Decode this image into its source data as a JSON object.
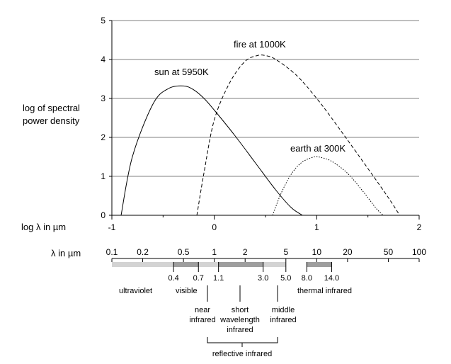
{
  "chart_data": {
    "type": "line",
    "ylabel_lines": [
      "log of spectral",
      "power density"
    ],
    "xlabel": "log  λ in µm",
    "xlim": [
      -1,
      2
    ],
    "ylim": [
      0,
      5
    ],
    "x_ticks": [
      "-1",
      "0",
      "1",
      "2"
    ],
    "y_ticks": [
      "0",
      "1",
      "2",
      "3",
      "4",
      "5"
    ],
    "grid": "horizontal",
    "series": [
      {
        "name": "sun at 5950K",
        "line_style": "solid",
        "x": [
          -0.91,
          -0.8,
          -0.6,
          -0.45,
          -0.3,
          -0.2,
          -0.1,
          0.0,
          0.2,
          0.4,
          0.6,
          0.75,
          0.86
        ],
        "y": [
          0.0,
          1.5,
          2.85,
          3.25,
          3.32,
          3.22,
          3.0,
          2.7,
          2.05,
          1.35,
          0.65,
          0.2,
          0.0
        ]
      },
      {
        "name": "fire at 1000K",
        "line_style": "dashed",
        "x": [
          -0.17,
          -0.1,
          0.0,
          0.15,
          0.3,
          0.42,
          0.5,
          0.6,
          0.8,
          1.0,
          1.2,
          1.5,
          1.7,
          1.81
        ],
        "y": [
          0.0,
          1.1,
          2.45,
          3.4,
          3.95,
          4.1,
          4.1,
          4.0,
          3.6,
          3.0,
          2.3,
          1.2,
          0.45,
          0.0
        ]
      },
      {
        "name": "earth at 300K",
        "line_style": "dotted",
        "x": [
          0.57,
          0.65,
          0.75,
          0.85,
          0.95,
          1.0,
          1.05,
          1.15,
          1.3,
          1.45,
          1.58,
          1.65
        ],
        "y": [
          0.0,
          0.55,
          1.05,
          1.35,
          1.48,
          1.5,
          1.48,
          1.38,
          1.08,
          0.62,
          0.18,
          0.0
        ]
      }
    ],
    "annotations": [
      "sun at 5950K",
      "fire at 1000K",
      "earth at 300K"
    ]
  },
  "wavelength_scale": {
    "label": "λ in µm",
    "ticks": [
      {
        "value": 0.1,
        "label": "0.1"
      },
      {
        "value": 0.2,
        "label": "0.2"
      },
      {
        "value": 0.5,
        "label": "0.5"
      },
      {
        "value": 1,
        "label": "1"
      },
      {
        "value": 2,
        "label": "2"
      },
      {
        "value": 5,
        "label": "5"
      },
      {
        "value": 10,
        "label": "10"
      },
      {
        "value": 20,
        "label": "20"
      },
      {
        "value": 50,
        "label": "50"
      },
      {
        "value": 100,
        "label": "100"
      }
    ]
  },
  "spectrum_bands": [
    {
      "from": 0.1,
      "to": 0.4,
      "color": "#d3d3d3"
    },
    {
      "from": 0.4,
      "to": 0.7,
      "color": "#9e9e9e"
    },
    {
      "from": 0.7,
      "to": 1.1,
      "color": "#d3d3d3"
    },
    {
      "from": 1.1,
      "to": 3.0,
      "color": "#9e9e9e"
    },
    {
      "from": 3.0,
      "to": 5.0,
      "color": "#d3d3d3"
    },
    {
      "from": 8.0,
      "to": 14.0,
      "color": "#9e9e9e"
    }
  ],
  "band_boundaries": [
    "0.4",
    "0.7",
    "1.1",
    "3.0",
    "5.0",
    "8.0",
    "14.0"
  ],
  "band_labels": {
    "ultraviolet": "ultraviolet",
    "visible": "visible",
    "near_infrared": [
      "near",
      "infrared"
    ],
    "short_wavelength_infrared": [
      "short",
      "wavelength",
      "infrared"
    ],
    "middle_infrared": [
      "middle",
      "infrared"
    ],
    "thermal_infrared": "thermal infrared",
    "reflective_infrared": "reflective infrared"
  }
}
